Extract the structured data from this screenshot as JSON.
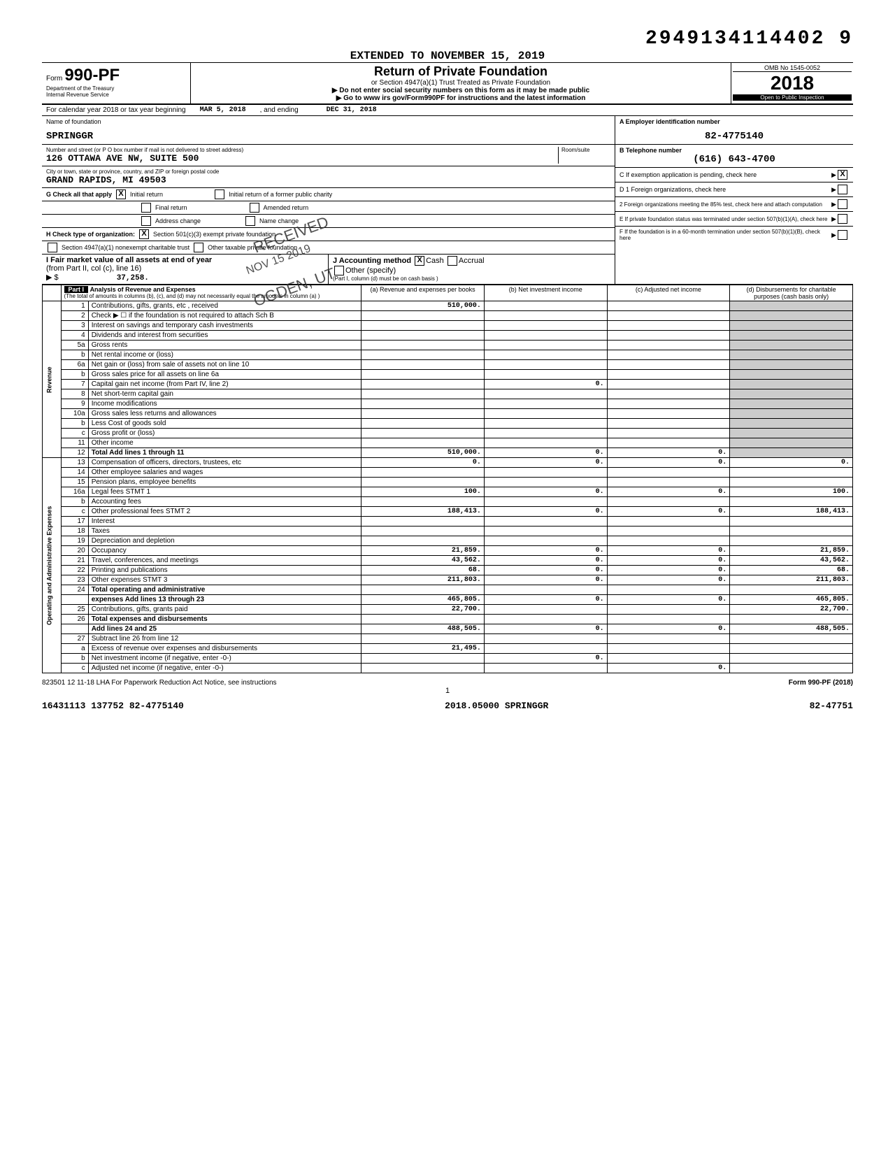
{
  "top_number": "2949134114402 9",
  "extended": "EXTENDED TO NOVEMBER 15, 2019",
  "header": {
    "form_label": "Form",
    "form_number": "990-PF",
    "dept": "Department of the Treasury",
    "irs": "Internal Revenue Service",
    "title": "Return of Private Foundation",
    "sub1": "or Section 4947(a)(1) Trust Treated as Private Foundation",
    "sub2": "▶ Do not enter social security numbers on this form as it may be made public",
    "sub3": "▶ Go to www irs gov/Form990PF for instructions and the latest information",
    "omb": "OMB No 1545-0052",
    "year": "2018",
    "open": "Open to Public Inspection"
  },
  "yearline": {
    "prefix": "For calendar year 2018 or tax year beginning",
    "begin": "MAR 5, 2018",
    "mid": ", and ending",
    "end": "DEC 31, 2018"
  },
  "name_block": {
    "label": "Name of foundation",
    "name": "SPRINGGR",
    "addr_label": "Number and street (or P O box number if mail is not delivered to street address)",
    "addr": "126 OTTAWA AVE NW, SUITE 500",
    "room_label": "Room/suite",
    "city_label": "City or town, state or province, country, and ZIP or foreign postal code",
    "city": "GRAND RAPIDS, MI   49503"
  },
  "right_block": {
    "a": "A Employer identification number",
    "ein": "82-4775140",
    "b": "B Telephone number",
    "phone": "(616) 643-4700",
    "c": "C  If exemption application is pending, check here",
    "d1": "D 1  Foreign organizations, check here",
    "d2": "2  Foreign organizations meeting the 85% test, check here and attach computation",
    "e": "E  If private foundation status was terminated under section 507(b)(1)(A), check here",
    "f": "F  If the foundation is in a 60-month termination under section 507(b)(1)(B), check here"
  },
  "g_block": {
    "label": "G  Check all that apply",
    "initial": "Initial return",
    "initial_former": "Initial return of a former public charity",
    "final": "Final return",
    "amended": "Amended return",
    "addr_change": "Address change",
    "name_change": "Name change"
  },
  "h_block": {
    "label": "H  Check type of organization:",
    "opt1": "Section 501(c)(3) exempt private foundation",
    "opt2": "Section 4947(a)(1) nonexempt charitable trust",
    "opt3": "Other taxable private foundation"
  },
  "i_block": {
    "label": "I  Fair market value of all assets at end of year",
    "sub": "(from Part II, col (c), line 16)",
    "arrow": "▶ $",
    "value": "37,258."
  },
  "j_block": {
    "label": "J  Accounting method",
    "cash": "Cash",
    "accrual": "Accrual",
    "other": "Other (specify)",
    "note": "(Part I, column (d) must be on cash basis )"
  },
  "part1": {
    "label": "Part I",
    "title": "Analysis of Revenue and Expenses",
    "note": "(The total of amounts in columns (b), (c), and (d) may not necessarily equal the amounts in column (a) )",
    "col_a": "(a) Revenue and expenses per books",
    "col_b": "(b) Net investment income",
    "col_c": "(c) Adjusted net income",
    "col_d": "(d) Disbursements for charitable purposes (cash basis only)"
  },
  "rows": {
    "r1": {
      "n": "1",
      "d": "Contributions, gifts, grants, etc , received",
      "a": "510,000."
    },
    "r2": {
      "n": "2",
      "d": "Check ▶ ☐  if the foundation is not required to attach Sch B"
    },
    "r3": {
      "n": "3",
      "d": "Interest on savings and temporary cash investments"
    },
    "r4": {
      "n": "4",
      "d": "Dividends and interest from securities"
    },
    "r5a": {
      "n": "5a",
      "d": "Gross rents"
    },
    "r5b": {
      "n": "b",
      "d": "Net rental income or (loss)"
    },
    "r6a": {
      "n": "6a",
      "d": "Net gain or (loss) from sale of assets not on line 10"
    },
    "r6b": {
      "n": "b",
      "d": "Gross sales price for all assets on line 6a"
    },
    "r7": {
      "n": "7",
      "d": "Capital gain net income (from Part IV, line 2)",
      "b": "0."
    },
    "r8": {
      "n": "8",
      "d": "Net short-term capital gain"
    },
    "r9": {
      "n": "9",
      "d": "Income modifications"
    },
    "r10a": {
      "n": "10a",
      "d": "Gross sales less returns and allowances"
    },
    "r10b": {
      "n": "b",
      "d": "Less Cost of goods sold"
    },
    "r10c": {
      "n": "c",
      "d": "Gross profit or (loss)"
    },
    "r11": {
      "n": "11",
      "d": "Other income"
    },
    "r12": {
      "n": "12",
      "d": "Total Add lines 1 through 11",
      "a": "510,000.",
      "b": "0.",
      "c": "0."
    },
    "r13": {
      "n": "13",
      "d": "Compensation of officers, directors, trustees, etc",
      "a": "0.",
      "b": "0.",
      "c": "0.",
      "dd": "0."
    },
    "r14": {
      "n": "14",
      "d": "Other employee salaries and wages"
    },
    "r15": {
      "n": "15",
      "d": "Pension plans, employee benefits"
    },
    "r16a": {
      "n": "16a",
      "d": "Legal fees                    STMT 1",
      "a": "100.",
      "b": "0.",
      "c": "0.",
      "dd": "100."
    },
    "r16b": {
      "n": "b",
      "d": "Accounting fees"
    },
    "r16c": {
      "n": "c",
      "d": "Other professional fees       STMT 2",
      "a": "188,413.",
      "b": "0.",
      "c": "0.",
      "dd": "188,413."
    },
    "r17": {
      "n": "17",
      "d": "Interest"
    },
    "r18": {
      "n": "18",
      "d": "Taxes"
    },
    "r19": {
      "n": "19",
      "d": "Depreciation and depletion"
    },
    "r20": {
      "n": "20",
      "d": "Occupancy",
      "a": "21,859.",
      "b": "0.",
      "c": "0.",
      "dd": "21,859."
    },
    "r21": {
      "n": "21",
      "d": "Travel, conferences, and meetings",
      "a": "43,562.",
      "b": "0.",
      "c": "0.",
      "dd": "43,562."
    },
    "r22": {
      "n": "22",
      "d": "Printing and publications",
      "a": "68.",
      "b": "0.",
      "c": "0.",
      "dd": "68."
    },
    "r23": {
      "n": "23",
      "d": "Other expenses                STMT 3",
      "a": "211,803.",
      "b": "0.",
      "c": "0.",
      "dd": "211,803."
    },
    "r24": {
      "n": "24",
      "d": "Total operating and administrative"
    },
    "r24b": {
      "n": "",
      "d": "expenses Add lines 13 through 23",
      "a": "465,805.",
      "b": "0.",
      "c": "0.",
      "dd": "465,805."
    },
    "r25": {
      "n": "25",
      "d": "Contributions, gifts, grants paid",
      "a": "22,700.",
      "dd": "22,700."
    },
    "r26": {
      "n": "26",
      "d": "Total expenses and disbursements"
    },
    "r26b": {
      "n": "",
      "d": "Add lines 24 and 25",
      "a": "488,505.",
      "b": "0.",
      "c": "0.",
      "dd": "488,505."
    },
    "r27": {
      "n": "27",
      "d": "Subtract line 26 from line 12"
    },
    "r27a": {
      "n": "a",
      "d": "Excess of revenue over expenses and disbursements",
      "a": "21,495."
    },
    "r27b": {
      "n": "b",
      "d": "Net investment income (if negative, enter -0-)",
      "b": "0."
    },
    "r27c": {
      "n": "c",
      "d": "Adjusted net income (if negative, enter -0-)",
      "c": "0."
    }
  },
  "side_revenue": "Revenue",
  "side_expenses": "Operating and Administrative Expenses",
  "footer": {
    "left": "823501 12 11-18   LHA  For Paperwork Reduction Act Notice, see instructions",
    "right": "Form 990-PF (2018)",
    "page": "1",
    "bottom_left": "16431113 137752 82-4775140",
    "bottom_mid": "2018.05000 SPRINGGR",
    "bottom_right": "82-47751"
  },
  "stamp": {
    "received": "RECEIVED",
    "date": "NOV 15 2019",
    "ogden": "OGDEN, UT"
  }
}
